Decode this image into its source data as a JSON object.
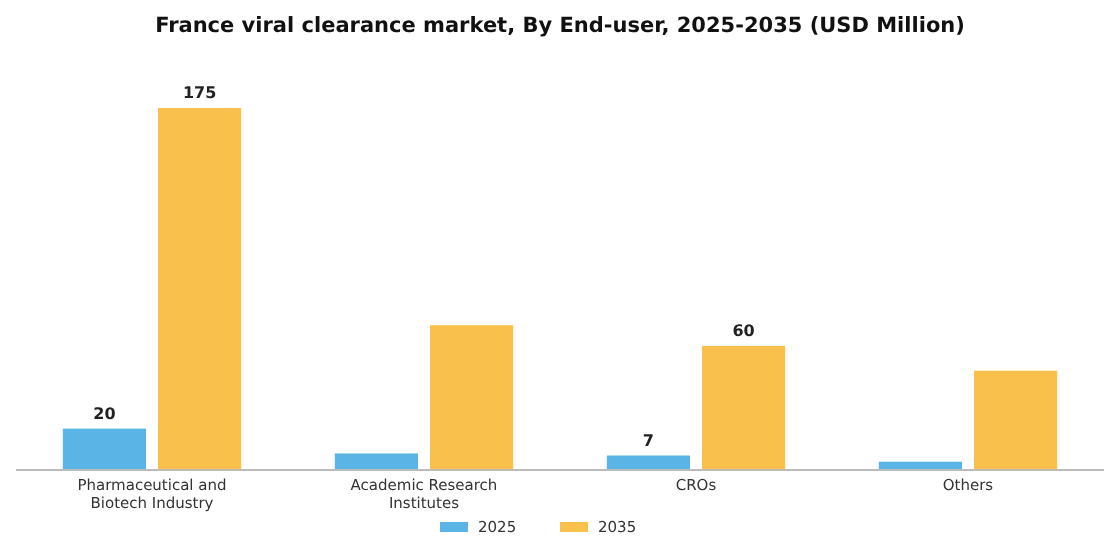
{
  "chart_data": {
    "type": "bar",
    "title": "France viral clearance market, By End-user, 2025-2035 (USD Million)",
    "categories": [
      "Pharmaceutical and Biotech Industry",
      "Academic Research Institutes",
      "CROs",
      "Others"
    ],
    "series": [
      {
        "name": "2025",
        "color": "#5ab4e5",
        "values": [
          20,
          8,
          7,
          4
        ],
        "value_labels": [
          "20",
          null,
          "7",
          null
        ]
      },
      {
        "name": "2035",
        "color": "#f9c14b",
        "values": [
          175,
          70,
          60,
          48
        ],
        "value_labels": [
          "175",
          null,
          "60",
          null
        ]
      }
    ],
    "legend": "bottom",
    "grid": false
  }
}
